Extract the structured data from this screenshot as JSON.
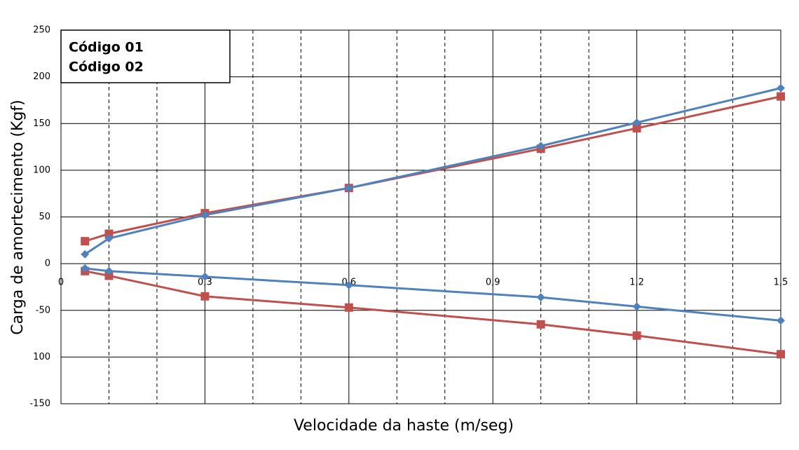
{
  "chart_data": {
    "type": "line",
    "x_label": "Velocidade da haste (m/seg)",
    "y_label": "Carga de amortecimento (Kgf)",
    "x": [
      0.05,
      0.1,
      0.3,
      0.6,
      1.0,
      1.2,
      1.5
    ],
    "series": [
      {
        "name": "Código 01",
        "color": "#c0504d",
        "marker": "square",
        "values": [
          24,
          32,
          54,
          81,
          123,
          145,
          179
        ],
        "lower_values": [
          -8,
          -13,
          -35,
          -47,
          -65,
          -77,
          -97
        ]
      },
      {
        "name": "Código 02",
        "color": "#4f81bd",
        "marker": "diamond",
        "values": [
          10,
          27,
          52,
          81,
          126,
          151,
          188
        ],
        "lower_values": [
          -5,
          -8,
          -14,
          -23,
          -36,
          -46,
          -61
        ]
      }
    ],
    "xlim": [
      0,
      1.5
    ],
    "xticks": [
      0,
      {
        "value": 0.3,
        "label": "0,3"
      },
      {
        "value": 0.6,
        "label": "0,6"
      },
      {
        "value": 0.9,
        "label": "0,9"
      },
      {
        "value": 1.2,
        "label": "1,2"
      },
      {
        "value": 1.5,
        "label": "1,5"
      }
    ],
    "x_minor_ticks": [
      0.1,
      0.2,
      0.4,
      0.5,
      0.7,
      0.8,
      1.0,
      1.1,
      1.3,
      1.4
    ],
    "ylim": [
      -150,
      250
    ],
    "yticks": [
      -150,
      {
        "value": -100,
        "label": "100"
      },
      -50,
      0,
      50,
      100,
      150,
      200,
      250
    ],
    "grid": true,
    "legend": "top-left"
  }
}
